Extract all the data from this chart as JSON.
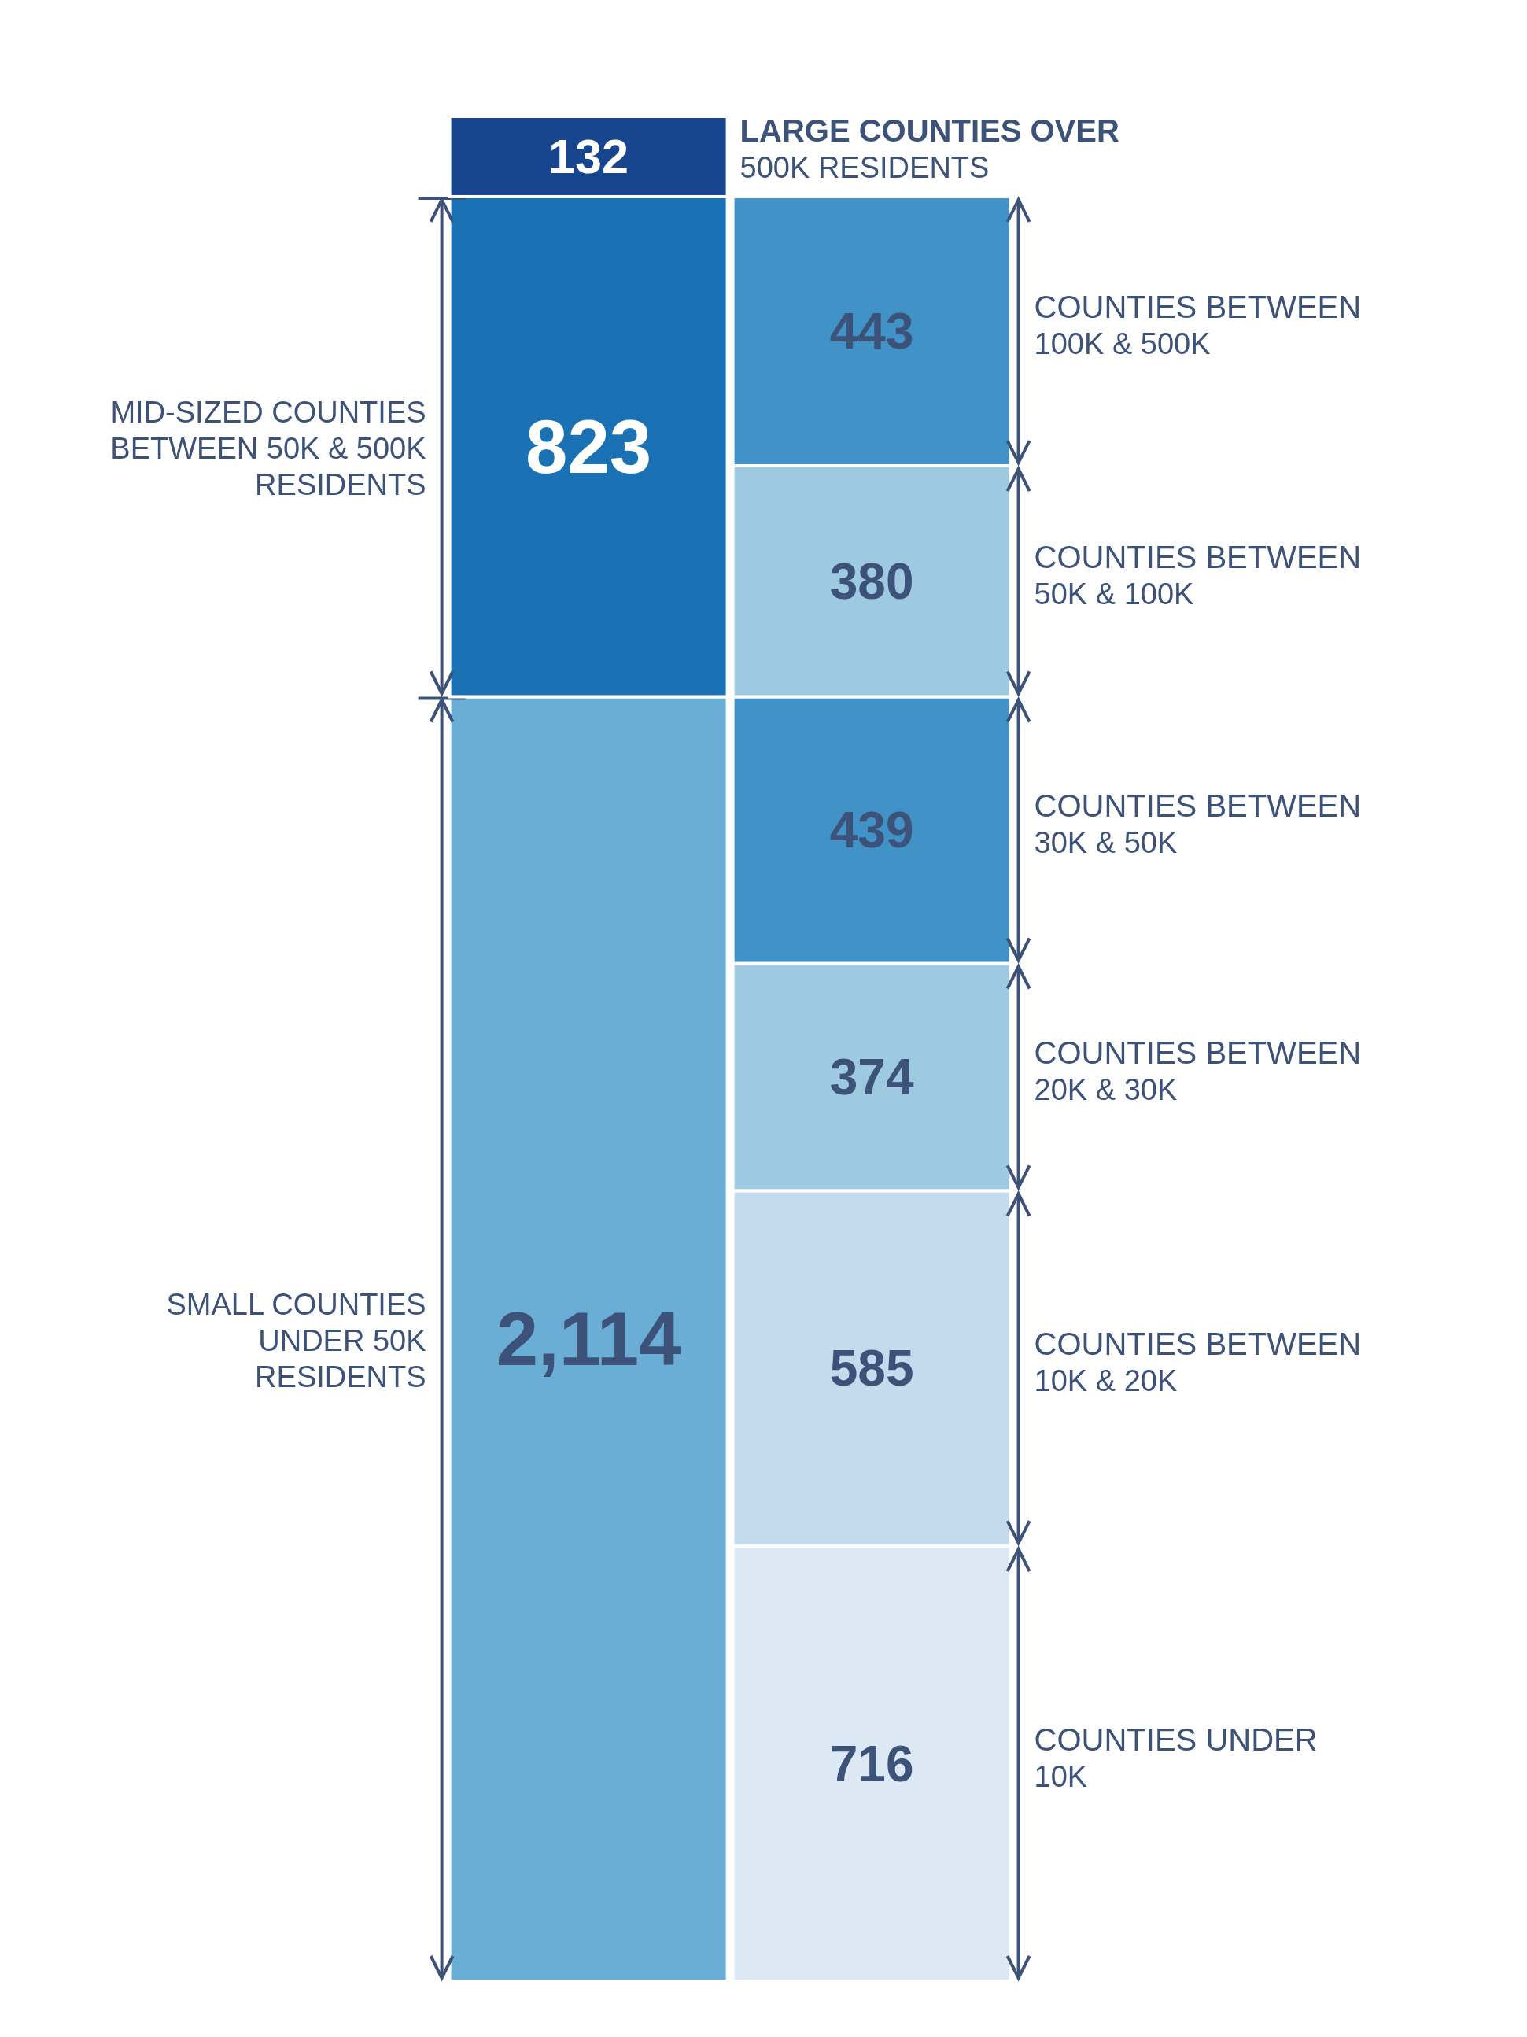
{
  "chart_data": {
    "type": "bar",
    "stacked": true,
    "categories": [
      null,
      null
    ],
    "series": [
      {
        "name": "SMALL COUNTIES UNDER 50K RESIDENTS",
        "color": "#6aaed6",
        "values": [
          2114,
          null
        ],
        "value_labels": [
          "2,114",
          null
        ]
      },
      {
        "name": "MID-SIZED COUNTIES BETWEEN 50K & 500K RESIDENTS",
        "color": "#1a72b4",
        "values": [
          823,
          null
        ],
        "value_labels": [
          "823",
          null
        ]
      },
      {
        "name": "LARGE COUNTIES OVER 500K RESIDENTS",
        "color": "#17468f",
        "values": [
          132,
          null
        ],
        "value_labels": [
          "132",
          null
        ]
      },
      {
        "name": "COUNTIES UNDER 10K",
        "color": "#dce9f5",
        "values": [
          null,
          716
        ],
        "value_labels": [
          null,
          "716"
        ]
      },
      {
        "name": "COUNTIES BETWEEN 10K & 20K",
        "color": "#c4dbee",
        "values": [
          null,
          585
        ],
        "value_labels": [
          null,
          "585"
        ]
      },
      {
        "name": "COUNTIES BETWEEN 20K & 30K",
        "color": "#9ecae1",
        "values": [
          null,
          374
        ],
        "value_labels": [
          null,
          "374"
        ]
      },
      {
        "name": "COUNTIES BETWEEN 30K & 50K",
        "color": "#4192c7",
        "values": [
          null,
          439
        ],
        "value_labels": [
          null,
          "439"
        ]
      },
      {
        "name": "COUNTIES BETWEEN 50K & 100K",
        "color": "#9ecae1",
        "values": [
          null,
          380
        ],
        "value_labels": [
          null,
          "380"
        ]
      },
      {
        "name": "COUNTIES BETWEEN 100K & 500K",
        "color": "#4192c7",
        "values": [
          null,
          443
        ],
        "value_labels": [
          null,
          "443"
        ]
      }
    ]
  }
}
